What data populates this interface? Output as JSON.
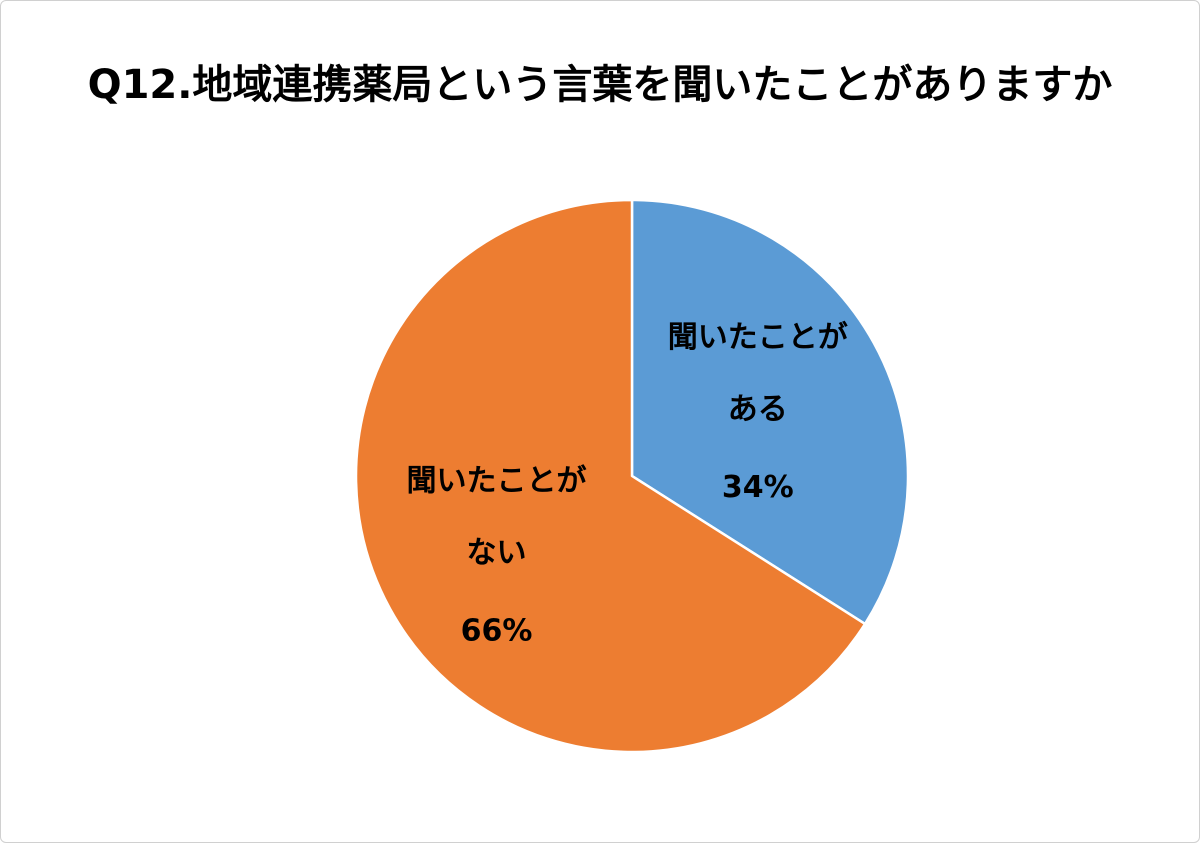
{
  "chart_data": {
    "type": "pie",
    "title": "Q12.地域連携薬局という言葉を聞いたことがありますか",
    "slices": [
      {
        "label_line1": "聞いたことが",
        "label_line2": "ある",
        "value": 34,
        "percent_label": "34%",
        "color": "#5b9bd5"
      },
      {
        "label_line1": "聞いたことが",
        "label_line2": "ない",
        "value": 66,
        "percent_label": "66%",
        "color": "#ed7d31"
      }
    ],
    "start_angle": "12 o'clock",
    "direction": "clockwise",
    "legend": "none",
    "border_color": "#ffffff"
  }
}
